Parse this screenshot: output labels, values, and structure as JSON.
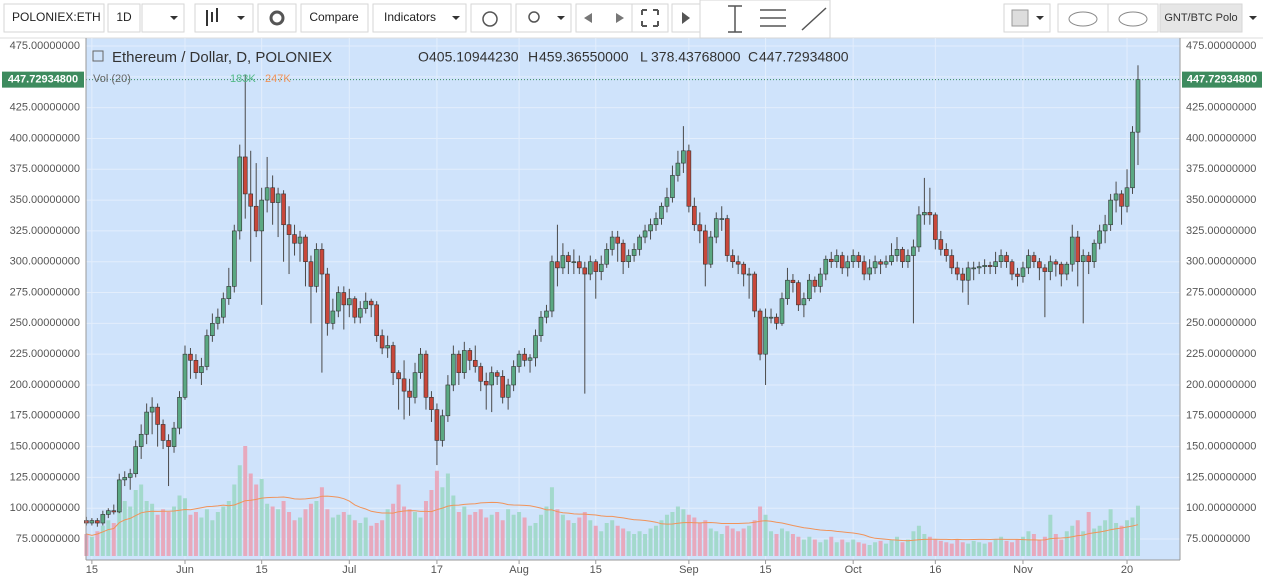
{
  "toolbar": {
    "symbol": "POLONIEX:ETH",
    "interval": "1D",
    "compare": "Compare",
    "indicators": "Indicators",
    "layout": "GNT/BTC Polo"
  },
  "chart_data": {
    "type": "candlestick",
    "title": "Ethereum / Dollar, D, POLONIEX",
    "legend": [
      {
        "key": "O",
        "text": "405.10944230"
      },
      {
        "key": "H",
        "text": "459.36550000"
      },
      {
        "key": "L",
        "text": "378.43768000"
      },
      {
        "key": "C",
        "text": "447.72934800"
      }
    ],
    "volume_legend": {
      "name": "Vol (20)",
      "last": {
        "value": 183,
        "label": "183K"
      },
      "average": {
        "value": 247,
        "label": "247K"
      }
    },
    "last_price": {
      "value": 447.729348,
      "label": "447.72934800"
    },
    "up_color": "#5aa882",
    "down_color": "#c8473a",
    "volume_up_color": "#a3d9cc",
    "volume_down_color": "#e7a9bd",
    "volume_ma_color": "#f0935a",
    "grid": true,
    "ylim": [
      58,
      481.5
    ],
    "yticks": [
      {
        "value": 75,
        "label": "75.00000000"
      },
      {
        "value": 100,
        "label": "100.00000000"
      },
      {
        "value": 125,
        "label": "125.00000000"
      },
      {
        "value": 150,
        "label": "150.00000000"
      },
      {
        "value": 175,
        "label": "175.00000000"
      },
      {
        "value": 200,
        "label": "200.00000000"
      },
      {
        "value": 225,
        "label": "225.00000000"
      },
      {
        "value": 250,
        "label": "250.00000000"
      },
      {
        "value": 275,
        "label": "275.00000000"
      },
      {
        "value": 300,
        "label": "300.00000000"
      },
      {
        "value": 325,
        "label": "325.00000000"
      },
      {
        "value": 350,
        "label": "350.00000000"
      },
      {
        "value": 375,
        "label": "375.00000000"
      },
      {
        "value": 400,
        "label": "400.00000000"
      },
      {
        "value": 425,
        "label": "425.00000000"
      },
      {
        "value": 450,
        "label": "450.00000000"
      },
      {
        "value": 475,
        "label": "475.00000000"
      }
    ],
    "xticks": [
      {
        "value": 1,
        "label": "15"
      },
      {
        "value": 18,
        "label": "Jun"
      },
      {
        "value": 32,
        "label": "15"
      },
      {
        "value": 48,
        "label": "Jul"
      },
      {
        "value": 64,
        "label": "17"
      },
      {
        "value": 79,
        "label": "Aug"
      },
      {
        "value": 93,
        "label": "15"
      },
      {
        "value": 110,
        "label": "Sep"
      },
      {
        "value": 124,
        "label": "15"
      },
      {
        "value": 140,
        "label": "Oct"
      },
      {
        "value": 155,
        "label": "16"
      },
      {
        "value": 171,
        "label": "Nov"
      },
      {
        "value": 190,
        "label": "20"
      }
    ],
    "ohlc": [
      [
        90,
        93,
        86,
        88
      ],
      [
        88,
        92,
        86,
        90
      ],
      [
        90,
        92,
        85,
        88
      ],
      [
        88,
        98,
        86,
        95
      ],
      [
        95,
        100,
        92,
        98
      ],
      [
        98,
        103,
        95,
        97
      ],
      [
        97,
        128,
        96,
        123
      ],
      [
        123,
        130,
        118,
        125
      ],
      [
        125,
        132,
        115,
        128
      ],
      [
        128,
        155,
        125,
        150
      ],
      [
        150,
        168,
        140,
        160
      ],
      [
        160,
        185,
        152,
        178
      ],
      [
        178,
        190,
        160,
        182
      ],
      [
        182,
        185,
        150,
        168
      ],
      [
        168,
        172,
        148,
        155
      ],
      [
        155,
        160,
        118,
        150
      ],
      [
        150,
        170,
        145,
        165
      ],
      [
        165,
        195,
        160,
        190
      ],
      [
        190,
        232,
        188,
        225
      ],
      [
        225,
        230,
        205,
        220
      ],
      [
        220,
        225,
        205,
        210
      ],
      [
        210,
        222,
        200,
        215
      ],
      [
        215,
        245,
        212,
        240
      ],
      [
        240,
        258,
        235,
        250
      ],
      [
        250,
        262,
        245,
        255
      ],
      [
        255,
        275,
        250,
        270
      ],
      [
        270,
        295,
        265,
        280
      ],
      [
        280,
        330,
        275,
        325
      ],
      [
        325,
        395,
        318,
        385
      ],
      [
        385,
        452,
        335,
        355
      ],
      [
        355,
        390,
        300,
        345
      ],
      [
        345,
        380,
        320,
        325
      ],
      [
        325,
        360,
        265,
        350
      ],
      [
        350,
        385,
        340,
        360
      ],
      [
        360,
        370,
        330,
        348
      ],
      [
        348,
        360,
        320,
        355
      ],
      [
        355,
        358,
        300,
        330
      ],
      [
        330,
        345,
        290,
        322
      ],
      [
        322,
        330,
        305,
        315
      ],
      [
        315,
        325,
        300,
        320
      ],
      [
        320,
        322,
        280,
        300
      ],
      [
        300,
        305,
        250,
        280
      ],
      [
        280,
        315,
        275,
        310
      ],
      [
        310,
        315,
        210,
        290
      ],
      [
        290,
        295,
        240,
        250
      ],
      [
        250,
        270,
        245,
        260
      ],
      [
        260,
        280,
        255,
        275
      ],
      [
        275,
        280,
        245,
        265
      ],
      [
        265,
        278,
        255,
        270
      ],
      [
        270,
        272,
        250,
        255
      ],
      [
        255,
        268,
        250,
        262
      ],
      [
        262,
        275,
        258,
        268
      ],
      [
        268,
        270,
        255,
        265
      ],
      [
        265,
        268,
        235,
        240
      ],
      [
        240,
        245,
        225,
        230
      ],
      [
        230,
        240,
        222,
        232
      ],
      [
        232,
        235,
        200,
        210
      ],
      [
        210,
        212,
        180,
        205
      ],
      [
        205,
        220,
        172,
        195
      ],
      [
        195,
        205,
        175,
        190
      ],
      [
        190,
        218,
        185,
        210
      ],
      [
        210,
        230,
        205,
        225
      ],
      [
        225,
        228,
        180,
        190
      ],
      [
        190,
        195,
        170,
        180
      ],
      [
        180,
        185,
        135,
        155
      ],
      [
        155,
        180,
        150,
        175
      ],
      [
        175,
        208,
        170,
        200
      ],
      [
        200,
        232,
        195,
        225
      ],
      [
        225,
        228,
        200,
        210
      ],
      [
        210,
        235,
        205,
        228
      ],
      [
        228,
        230,
        212,
        220
      ],
      [
        220,
        232,
        210,
        215
      ],
      [
        215,
        218,
        195,
        203
      ],
      [
        203,
        210,
        180,
        200
      ],
      [
        200,
        215,
        178,
        210
      ],
      [
        210,
        212,
        200,
        207
      ],
      [
        207,
        212,
        185,
        190
      ],
      [
        190,
        205,
        180,
        200
      ],
      [
        200,
        220,
        195,
        215
      ],
      [
        215,
        228,
        210,
        225
      ],
      [
        225,
        230,
        215,
        220
      ],
      [
        220,
        225,
        210,
        222
      ],
      [
        222,
        245,
        215,
        240
      ],
      [
        240,
        260,
        235,
        255
      ],
      [
        255,
        265,
        250,
        260
      ],
      [
        260,
        305,
        255,
        300
      ],
      [
        300,
        330,
        280,
        295
      ],
      [
        295,
        315,
        290,
        305
      ],
      [
        305,
        308,
        290,
        300
      ],
      [
        300,
        310,
        290,
        300
      ],
      [
        300,
        305,
        290,
        295
      ],
      [
        295,
        300,
        193,
        290
      ],
      [
        290,
        305,
        285,
        300
      ],
      [
        300,
        302,
        270,
        292
      ],
      [
        292,
        305,
        285,
        298
      ],
      [
        298,
        315,
        295,
        310
      ],
      [
        310,
        325,
        305,
        320
      ],
      [
        320,
        325,
        300,
        315
      ],
      [
        315,
        318,
        290,
        300
      ],
      [
        300,
        310,
        295,
        305
      ],
      [
        305,
        315,
        300,
        310
      ],
      [
        310,
        322,
        305,
        320
      ],
      [
        320,
        330,
        315,
        325
      ],
      [
        325,
        335,
        318,
        330
      ],
      [
        330,
        340,
        325,
        335
      ],
      [
        335,
        348,
        330,
        345
      ],
      [
        345,
        360,
        340,
        352
      ],
      [
        352,
        378,
        348,
        370
      ],
      [
        370,
        390,
        365,
        380
      ],
      [
        380,
        410,
        372,
        390
      ],
      [
        390,
        395,
        340,
        345
      ],
      [
        345,
        352,
        325,
        330
      ],
      [
        330,
        340,
        315,
        325
      ],
      [
        325,
        330,
        280,
        298
      ],
      [
        298,
        325,
        295,
        320
      ],
      [
        320,
        340,
        315,
        335
      ],
      [
        335,
        345,
        325,
        335
      ],
      [
        335,
        338,
        300,
        305
      ],
      [
        305,
        310,
        295,
        300
      ],
      [
        300,
        305,
        290,
        298
      ],
      [
        298,
        300,
        280,
        290
      ],
      [
        290,
        295,
        270,
        290
      ],
      [
        290,
        292,
        255,
        260
      ],
      [
        260,
        262,
        220,
        225
      ],
      [
        225,
        262,
        200,
        255
      ],
      [
        255,
        262,
        250,
        255
      ],
      [
        255,
        258,
        245,
        250
      ],
      [
        250,
        275,
        248,
        270
      ],
      [
        270,
        295,
        265,
        285
      ],
      [
        285,
        290,
        275,
        283
      ],
      [
        283,
        285,
        260,
        265
      ],
      [
        265,
        275,
        255,
        270
      ],
      [
        270,
        290,
        268,
        285
      ],
      [
        285,
        288,
        275,
        280
      ],
      [
        280,
        295,
        275,
        290
      ],
      [
        290,
        305,
        285,
        302
      ],
      [
        302,
        308,
        295,
        300
      ],
      [
        300,
        310,
        295,
        305
      ],
      [
        305,
        308,
        290,
        295
      ],
      [
        295,
        305,
        288,
        300
      ],
      [
        300,
        310,
        295,
        305
      ],
      [
        305,
        308,
        295,
        300
      ],
      [
        300,
        305,
        285,
        290
      ],
      [
        290,
        302,
        285,
        295
      ],
      [
        295,
        305,
        290,
        300
      ],
      [
        300,
        302,
        290,
        298
      ],
      [
        298,
        305,
        295,
        300
      ],
      [
        300,
        315,
        297,
        305
      ],
      [
        305,
        320,
        300,
        310
      ],
      [
        310,
        312,
        295,
        300
      ],
      [
        300,
        310,
        295,
        305
      ],
      [
        305,
        318,
        250,
        312
      ],
      [
        312,
        345,
        308,
        338
      ],
      [
        338,
        368,
        330,
        340
      ],
      [
        340,
        360,
        330,
        338
      ],
      [
        338,
        340,
        310,
        318
      ],
      [
        318,
        325,
        305,
        310
      ],
      [
        310,
        315,
        300,
        305
      ],
      [
        305,
        310,
        290,
        295
      ],
      [
        295,
        300,
        285,
        290
      ],
      [
        290,
        295,
        275,
        285
      ],
      [
        285,
        300,
        265,
        295
      ],
      [
        295,
        300,
        285,
        295
      ],
      [
        295,
        300,
        290,
        296
      ],
      [
        296,
        302,
        290,
        297
      ],
      [
        297,
        300,
        290,
        296
      ],
      [
        296,
        308,
        290,
        300
      ],
      [
        300,
        310,
        295,
        305
      ],
      [
        305,
        308,
        295,
        300
      ],
      [
        300,
        302,
        285,
        290
      ],
      [
        290,
        295,
        280,
        288
      ],
      [
        288,
        300,
        283,
        295
      ],
      [
        295,
        310,
        290,
        305
      ],
      [
        305,
        308,
        295,
        300
      ],
      [
        300,
        303,
        285,
        295
      ],
      [
        295,
        298,
        255,
        292
      ],
      [
        292,
        305,
        285,
        300
      ],
      [
        300,
        302,
        288,
        298
      ],
      [
        298,
        300,
        280,
        290
      ],
      [
        290,
        300,
        285,
        298
      ],
      [
        298,
        330,
        292,
        320
      ],
      [
        320,
        325,
        280,
        300
      ],
      [
        300,
        310,
        250,
        305
      ],
      [
        305,
        308,
        290,
        300
      ],
      [
        300,
        318,
        295,
        315
      ],
      [
        315,
        330,
        310,
        325
      ],
      [
        325,
        338,
        315,
        330
      ],
      [
        330,
        355,
        325,
        350
      ],
      [
        350,
        365,
        340,
        355
      ],
      [
        355,
        358,
        330,
        345
      ],
      [
        345,
        375,
        340,
        360
      ],
      [
        360,
        410,
        355,
        405.1094423
      ],
      [
        405.1094423,
        459.3655,
        378.43768,
        447.729348
      ]
    ],
    "volume": [
      80,
      70,
      90,
      110,
      130,
      120,
      250,
      200,
      180,
      240,
      260,
      200,
      190,
      150,
      170,
      160,
      180,
      220,
      210,
      150,
      160,
      140,
      170,
      130,
      160,
      180,
      200,
      260,
      330,
      400,
      300,
      260,
      280,
      190,
      180,
      170,
      200,
      160,
      130,
      140,
      170,
      190,
      200,
      250,
      170,
      140,
      150,
      160,
      150,
      130,
      120,
      140,
      110,
      120,
      130,
      170,
      190,
      260,
      180,
      170,
      160,
      140,
      200,
      240,
      310,
      250,
      300,
      220,
      160,
      180,
      150,
      160,
      170,
      140,
      150,
      160,
      130,
      170,
      150,
      160,
      140,
      110,
      120,
      150,
      180,
      250,
      170,
      150,
      130,
      120,
      140,
      160,
      130,
      110,
      90,
      120,
      130,
      110,
      100,
      90,
      80,
      90,
      80,
      100,
      110,
      130,
      150,
      160,
      180,
      170,
      150,
      140,
      120,
      130,
      100,
      90,
      80,
      110,
      100,
      90,
      100,
      110,
      130,
      180,
      150,
      90,
      80,
      100,
      90,
      80,
      70,
      60,
      70,
      60,
      50,
      60,
      70,
      50,
      60,
      50,
      60,
      50,
      45,
      40,
      50,
      55,
      45,
      60,
      70,
      50,
      60,
      90,
      110,
      80,
      70,
      60,
      55,
      50,
      45,
      60,
      50,
      45,
      55,
      50,
      45,
      50,
      60,
      70,
      55,
      50,
      60,
      70,
      90,
      80,
      60,
      70,
      150,
      80,
      60,
      90,
      110,
      130,
      90,
      160,
      100,
      110,
      130,
      170,
      120,
      110,
      130,
      140,
      183
    ]
  }
}
